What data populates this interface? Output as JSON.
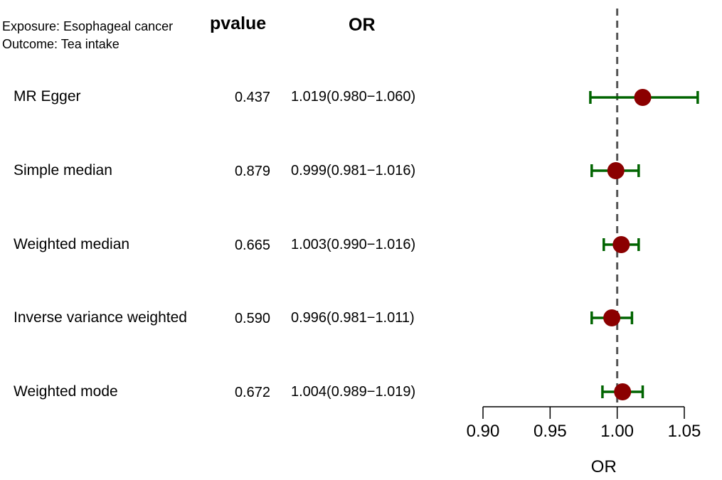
{
  "header": {
    "exposure": "Exposure: Esophageal cancer",
    "outcome": "Outcome: Tea intake",
    "pvalue_label": "pvalue",
    "or_label": "OR"
  },
  "chart_data": {
    "type": "forest",
    "xlabel": "OR",
    "xlim": [
      0.9,
      1.05
    ],
    "xticks": [
      0.9,
      0.95,
      1.0,
      1.05
    ],
    "xtick_labels": [
      "0.90",
      "0.95",
      "1.00",
      "1.05"
    ],
    "reference_line": 1.0,
    "rows": [
      {
        "method": "MR Egger",
        "pvalue": "0.437",
        "or_text": "1.019(0.980−1.060)",
        "or": 1.019,
        "lower": 0.98,
        "upper": 1.06
      },
      {
        "method": "Simple median",
        "pvalue": "0.879",
        "or_text": "0.999(0.981−1.016)",
        "or": 0.999,
        "lower": 0.981,
        "upper": 1.016
      },
      {
        "method": "Weighted median",
        "pvalue": "0.665",
        "or_text": "1.003(0.990−1.016)",
        "or": 1.003,
        "lower": 0.99,
        "upper": 1.016
      },
      {
        "method": "Inverse variance weighted",
        "pvalue": "0.590",
        "or_text": "0.996(0.981−1.011)",
        "or": 0.996,
        "lower": 0.981,
        "upper": 1.011
      },
      {
        "method": "Weighted mode",
        "pvalue": "0.672",
        "or_text": "1.004(0.989−1.019)",
        "or": 1.004,
        "lower": 0.989,
        "upper": 1.019
      }
    ],
    "colors": {
      "point": "#8b0000",
      "ci": "#006400",
      "axis": "#000000",
      "reference": "#555555"
    }
  }
}
